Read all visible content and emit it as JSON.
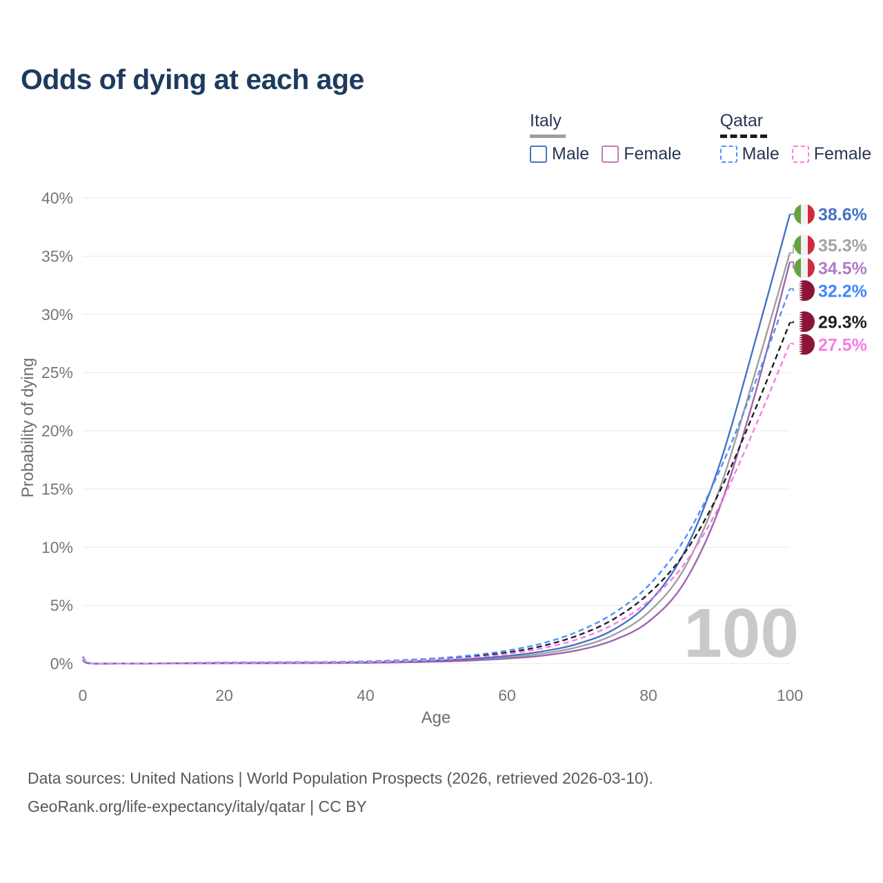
{
  "title": "Odds of dying at each age",
  "watermark": "100",
  "legend": {
    "groups": [
      {
        "label": "Italy",
        "line_style": "solid",
        "line_color": "#9e9e9e",
        "items": [
          {
            "label": "Male",
            "color": "#4472c4",
            "dash": false
          },
          {
            "label": "Female",
            "color": "#bb79b6",
            "dash": false
          }
        ]
      },
      {
        "label": "Qatar",
        "line_style": "dashed",
        "line_color": "#1a1a1a",
        "items": [
          {
            "label": "Male",
            "color": "#4d90fe",
            "dash": true
          },
          {
            "label": "Female",
            "color": "#f87ce3",
            "dash": true
          }
        ]
      }
    ]
  },
  "chart_data": {
    "type": "line",
    "title": "Odds of dying at each age",
    "xlabel": "Age",
    "ylabel": "Probability of dying",
    "xlim": [
      0,
      100
    ],
    "ylim": [
      0,
      40
    ],
    "x_ticks": [
      0,
      20,
      40,
      60,
      80,
      100
    ],
    "y_ticks": [
      "0%",
      "5%",
      "10%",
      "15%",
      "20%",
      "25%",
      "30%",
      "35%",
      "40%"
    ],
    "grid": "horizontal",
    "legend_position": "top-right",
    "x": [
      0,
      1,
      5,
      10,
      15,
      20,
      25,
      30,
      35,
      40,
      45,
      50,
      55,
      60,
      65,
      70,
      75,
      80,
      85,
      90,
      95,
      100
    ],
    "series": [
      {
        "name": "Italy Male",
        "country": "Italy",
        "flag": "italy",
        "color": "#4472c4",
        "label_color": "#4472c4",
        "dash": false,
        "end_label": "38.6%",
        "end_value": 38.6,
        "values": [
          0.32,
          0.02,
          0.01,
          0.01,
          0.03,
          0.05,
          0.06,
          0.07,
          0.08,
          0.11,
          0.17,
          0.27,
          0.42,
          0.66,
          1.05,
          1.7,
          2.9,
          5.2,
          9.5,
          17.0,
          27.5,
          38.6
        ]
      },
      {
        "name": "Italy",
        "country": "Italy",
        "flag": "italy",
        "color": "#9e9e9e",
        "label_color": "#a3a3a3",
        "dash": false,
        "end_label": "35.3%",
        "end_value": 35.3,
        "values": [
          0.29,
          0.018,
          0.009,
          0.009,
          0.025,
          0.04,
          0.05,
          0.055,
          0.065,
          0.09,
          0.14,
          0.22,
          0.34,
          0.54,
          0.86,
          1.42,
          2.45,
          4.4,
          8.1,
          14.9,
          24.8,
          35.3
        ]
      },
      {
        "name": "Italy Female",
        "country": "Italy",
        "flag": "italy",
        "color": "#9d63ad",
        "label_color": "#b07cc4",
        "dash": false,
        "end_label": "34.5%",
        "end_value": 34.5,
        "values": [
          0.27,
          0.016,
          0.008,
          0.008,
          0.02,
          0.03,
          0.035,
          0.04,
          0.05,
          0.07,
          0.11,
          0.17,
          0.27,
          0.43,
          0.69,
          1.15,
          2.0,
          3.6,
          6.9,
          13.3,
          23.0,
          34.5
        ]
      },
      {
        "name": "Qatar Male",
        "country": "Qatar",
        "flag": "qatar",
        "color": "#4d90fe",
        "label_color": "#3d87ff",
        "dash": true,
        "end_label": "32.2%",
        "end_value": 32.2,
        "values": [
          0.62,
          0.04,
          0.02,
          0.02,
          0.06,
          0.1,
          0.12,
          0.13,
          0.15,
          0.2,
          0.3,
          0.46,
          0.72,
          1.12,
          1.75,
          2.75,
          4.3,
          6.7,
          10.6,
          16.5,
          24.0,
          32.2
        ]
      },
      {
        "name": "Qatar",
        "country": "Qatar",
        "flag": "qatar",
        "color": "#1f1f1f",
        "label_color": "#1f1f1f",
        "dash": true,
        "end_label": "29.3%",
        "end_value": 29.3,
        "values": [
          0.57,
          0.035,
          0.018,
          0.018,
          0.05,
          0.08,
          0.1,
          0.11,
          0.13,
          0.17,
          0.26,
          0.39,
          0.61,
          0.96,
          1.52,
          2.42,
          3.8,
          6.0,
          9.4,
          14.7,
          21.7,
          29.3
        ]
      },
      {
        "name": "Qatar Female",
        "country": "Qatar",
        "flag": "qatar",
        "color": "#f87ce3",
        "label_color": "#f87ce3",
        "dash": true,
        "end_label": "27.5%",
        "end_value": 27.5,
        "values": [
          0.5,
          0.03,
          0.015,
          0.015,
          0.04,
          0.06,
          0.08,
          0.09,
          0.11,
          0.14,
          0.21,
          0.33,
          0.52,
          0.83,
          1.32,
          2.1,
          3.35,
          5.35,
          8.5,
          13.5,
          20.2,
          27.5
        ]
      }
    ]
  },
  "footer": {
    "line1": "Data sources: United Nations | World Population Prospects (2026, retrieved 2026-03-10).",
    "line2": "GeoRank.org/life-expectancy/italy/qatar | CC BY"
  }
}
